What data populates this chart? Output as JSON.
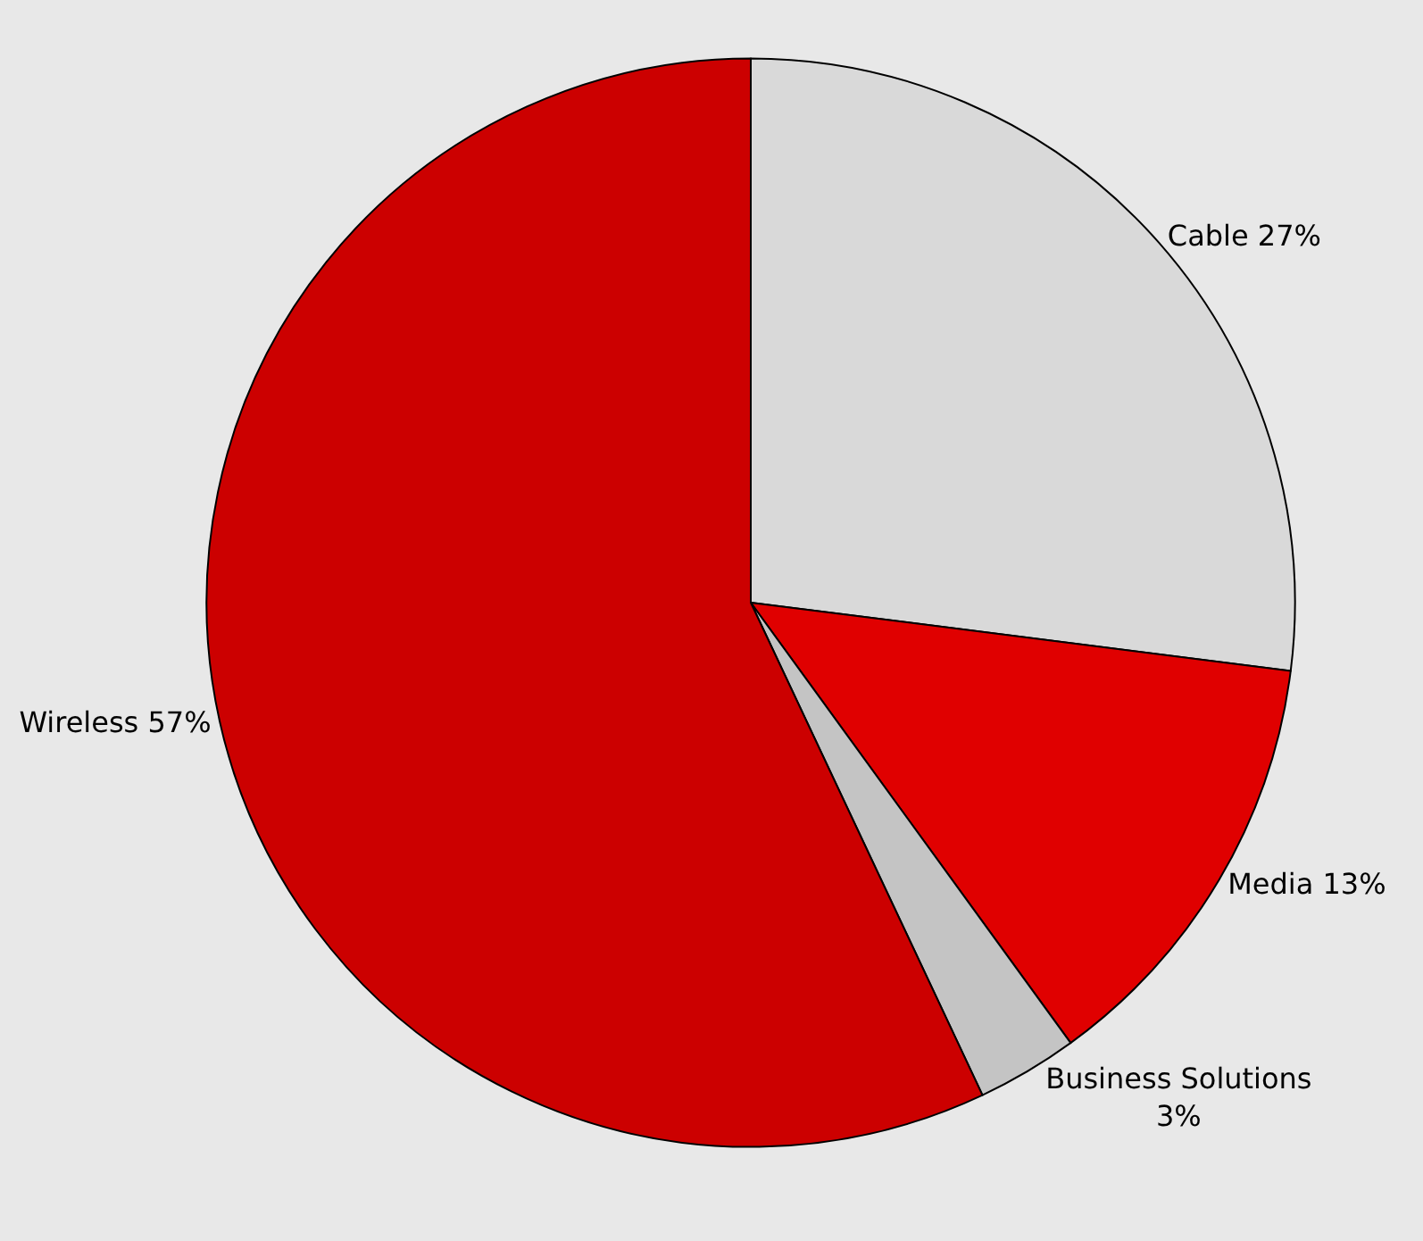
{
  "chart_data": {
    "type": "pie",
    "categories": [
      "Cable",
      "Media",
      "Business Solutions",
      "Wireless"
    ],
    "values": [
      27,
      13,
      3,
      57
    ],
    "value_labels": [
      "27%",
      "13%",
      "3%",
      "57%"
    ],
    "colors": [
      "#d9d9d9",
      "#e00000",
      "#c4c4c4",
      "#cc0000"
    ],
    "legend": false
  }
}
